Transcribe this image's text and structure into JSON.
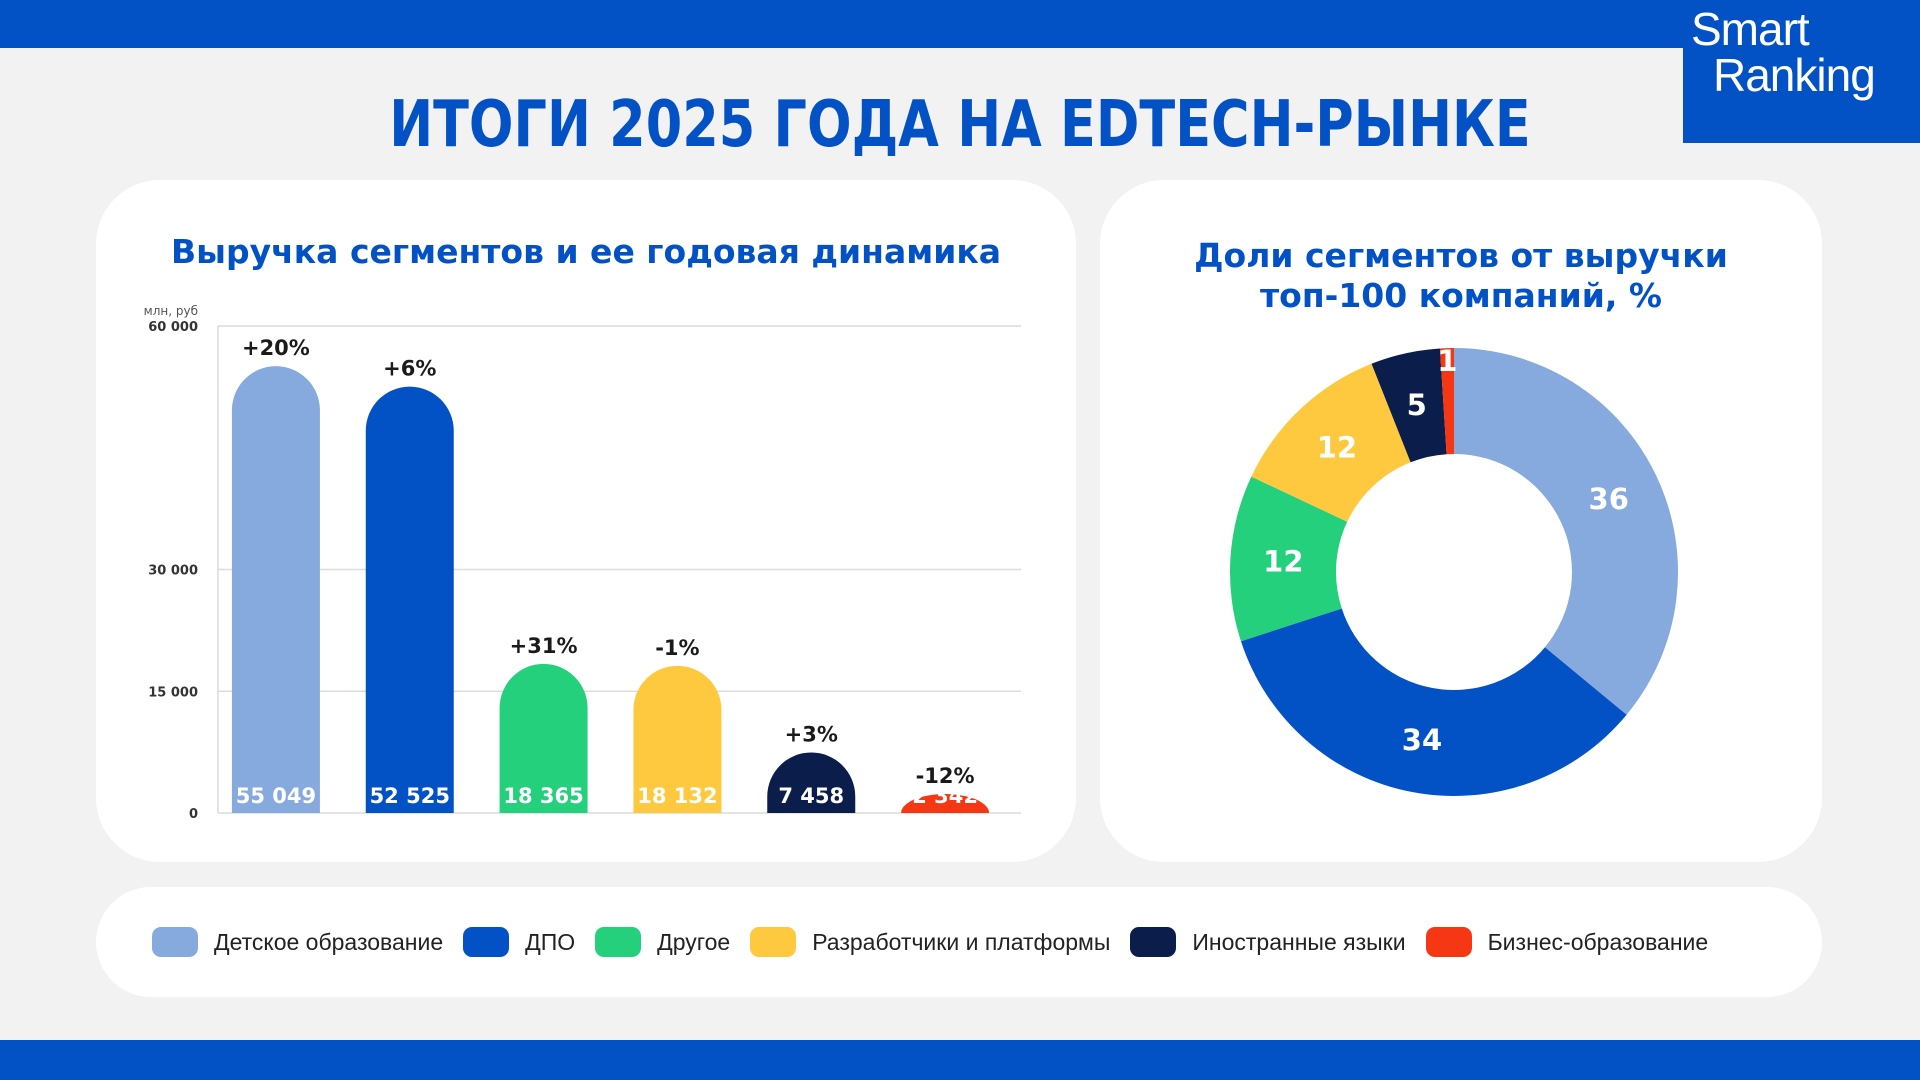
{
  "header": {
    "title": "ИТОГИ 2025 ГОДА НА EDTECH-РЫНКЕ",
    "logo_line1": "Smart",
    "logo_line2": "Ranking"
  },
  "colors": {
    "brand": "#0352c5",
    "segments": [
      "#86a9de",
      "#0352c5",
      "#24d07b",
      "#ffc93f",
      "#0a1d4b",
      "#f63714"
    ]
  },
  "segments": [
    "Детское образование",
    "ДПО",
    "Другое",
    "Разработчики и платформы",
    "Иностранные языки",
    "Бизнес-образование"
  ],
  "chart_data": [
    {
      "type": "bar",
      "title": "Выручка сегментов и ее годовая динамика",
      "ylabel": "млн, руб",
      "categories": [
        "Детское образование",
        "ДПО",
        "Другое",
        "Разработчики и платформы",
        "Иностранные языки",
        "Бизнес-образование"
      ],
      "values": [
        55049,
        52525,
        18365,
        18132,
        7458,
        2342
      ],
      "value_labels": [
        "55 049",
        "52 525",
        "18 365",
        "18 132",
        "7 458",
        "2 342"
      ],
      "growth_labels": [
        "+20%",
        "+6%",
        "+31%",
        "-1%",
        "+3%",
        "-12%"
      ],
      "ylim": [
        0,
        60000
      ],
      "yticks": [
        0,
        15000,
        30000,
        60000
      ],
      "ytick_labels": [
        "0",
        "15 000",
        "30 000",
        "60 000"
      ],
      "grid": true
    },
    {
      "type": "pie",
      "title_line1": "Доли сегментов от выручки",
      "title_line2": "топ-100 компаний, %",
      "categories": [
        "Детское образование",
        "ДПО",
        "Другое",
        "Разработчики и платформы",
        "Иностранные языки",
        "Бизнес-образование"
      ],
      "values": [
        36,
        34,
        12,
        12,
        5,
        1
      ],
      "donut": true
    }
  ]
}
